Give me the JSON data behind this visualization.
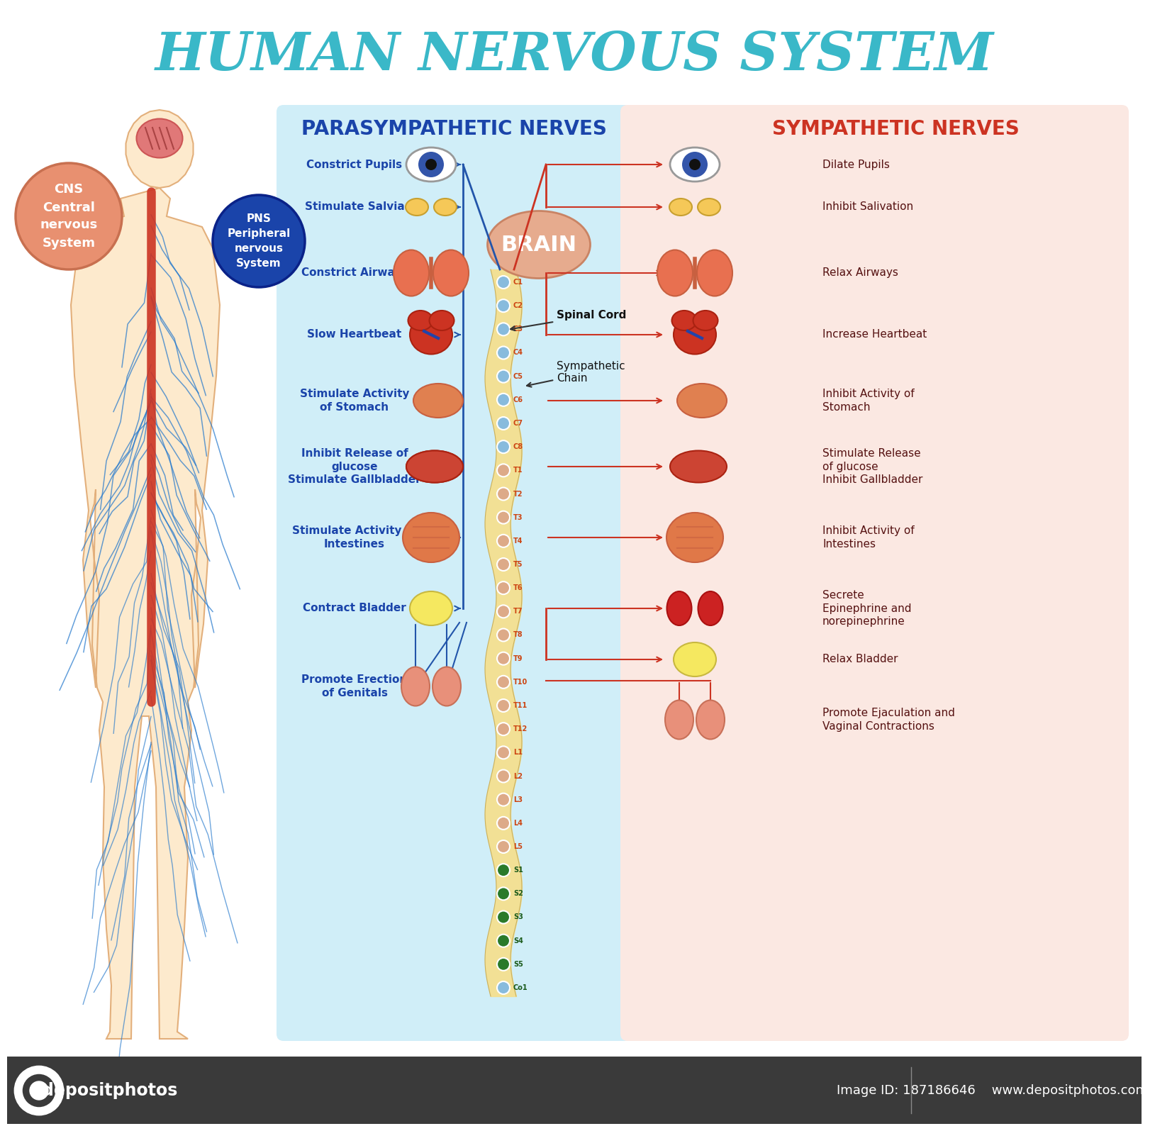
{
  "title": "HUMAN NERVOUS SYSTEM",
  "title_color": "#3ab8c8",
  "bg_color": "#ffffff",
  "parasympathetic_title": "PARASYMPATHETIC NERVES",
  "sympathetic_title": "SYMPATHETIC NERVES",
  "para_title_color": "#1a44aa",
  "symp_title_color": "#cc3322",
  "para_bg": "#d0eef8",
  "symp_bg": "#fbe8e2",
  "cns_label": "CNS\nCentral\nnervous\nSystem",
  "pns_label": "PNS\nPeripheral\nnervous\nSystem",
  "brain_label": "BRAIN",
  "spinal_cord_label": "Spinal Cord",
  "sympathetic_chain_label": "Sympathetic\nChain",
  "para_items": [
    "Constrict Pupils",
    "Stimulate Salvia",
    "Constrict Airways",
    "Slow Heartbeat",
    "Stimulate Activity\nof Stomach",
    "Inhibit Release of\nglucose\nStimulate Gallbladder",
    "Stimulate Activity of\nIntestines",
    "Contract Bladder",
    "Promote Erection\nof Genitals"
  ],
  "symp_items": [
    "Dilate Pupils",
    "Inhibit Salivation",
    "Relax Airways",
    "Increase Heartbeat",
    "Inhibit Activity of\nStomach",
    "Stimulate Release\nof glucose\nInhibit Gallbladder",
    "Inhibit Activity of\nIntestines",
    "Secrete\nEpinephrine and\nnorepinephrine",
    "Relax Bladder",
    "Promote Ejaculation and\nVaginal Contractions"
  ],
  "spinal_c": [
    "C1",
    "C2",
    "C3",
    "C4",
    "C5",
    "C6",
    "C7",
    "C8"
  ],
  "spinal_t": [
    "T1",
    "T2",
    "T3",
    "T4",
    "T5",
    "T6",
    "T7",
    "T8",
    "T9",
    "T10",
    "T11",
    "T12"
  ],
  "spinal_l": [
    "L1",
    "L2",
    "L3",
    "L4",
    "L5"
  ],
  "spinal_s": [
    "S1",
    "S2",
    "S3",
    "S4",
    "S5"
  ],
  "spinal_co": "Co1",
  "footer_bg": "#3a3a3a",
  "footer_logo": "depositphotos",
  "footer_right": "Image ID: 187186646    www.depositphotos.com",
  "skin_color": "#f5c8a0",
  "skin_light": "#fde8c8",
  "nerve_blue": "#2277cc",
  "spine_red": "#cc4433",
  "para_arrow_color": "#2255aa",
  "symp_arrow_color": "#cc3322"
}
